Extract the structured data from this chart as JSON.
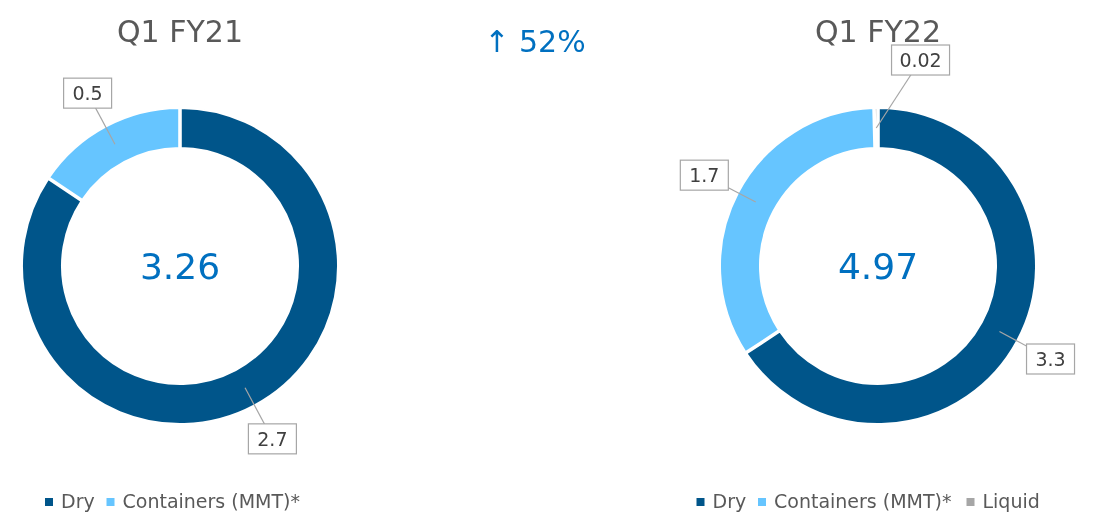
{
  "chart_data": [
    {
      "type": "donut",
      "title": "Q1 FY21",
      "categories": [
        "Dry",
        "Containers (MMT)*"
      ],
      "values": [
        2.7,
        0.5
      ],
      "colors": [
        "#00558a",
        "#66c5ff"
      ],
      "data_labels": true,
      "legend": "bottom",
      "annotations": [
        "3.26"
      ]
    },
    {
      "type": "donut",
      "title": "Q1 FY22",
      "categories": [
        "Dry",
        "Containers (MMT)*",
        "Liquid"
      ],
      "values": [
        3.3,
        1.7,
        0.02
      ],
      "colors": [
        "#00558a",
        "#66c5ff",
        "#a6a6a6"
      ],
      "data_labels": true,
      "legend": "bottom",
      "annotations": [
        "4.97",
        "↑ 52%"
      ]
    }
  ]
}
